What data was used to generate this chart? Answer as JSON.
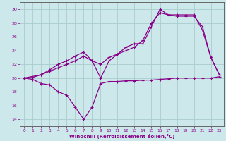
{
  "bg_color": "#cce8ea",
  "grid_color": "#aacccc",
  "line_color": "#880088",
  "xlabel": "Windchill (Refroidissement éolien,°C)",
  "xlim": [
    -0.5,
    23.5
  ],
  "ylim": [
    13.0,
    31.0
  ],
  "yticks": [
    14,
    16,
    18,
    20,
    22,
    24,
    26,
    28,
    30
  ],
  "xticks": [
    0,
    1,
    2,
    3,
    4,
    5,
    6,
    7,
    8,
    9,
    10,
    11,
    12,
    13,
    14,
    15,
    16,
    17,
    18,
    19,
    20,
    21,
    22,
    23
  ],
  "line1_x": [
    0,
    1,
    2,
    3,
    4,
    5,
    6,
    7,
    8,
    9,
    10,
    11,
    12,
    13,
    14,
    15,
    16,
    17,
    18,
    19,
    20,
    21,
    22,
    23
  ],
  "line1_y": [
    20,
    19.8,
    19.2,
    19.0,
    18.0,
    17.5,
    15.8,
    14.0,
    15.8,
    19.2,
    19.5,
    19.5,
    19.6,
    19.6,
    19.7,
    19.7,
    19.8,
    19.9,
    20.0,
    20.0,
    20.0,
    20.0,
    20.0,
    20.2
  ],
  "line2_x": [
    0,
    1,
    2,
    3,
    4,
    5,
    6,
    7,
    8,
    9,
    10,
    11,
    12,
    13,
    14,
    15,
    16,
    17,
    18,
    19,
    20,
    21,
    22,
    23
  ],
  "line2_y": [
    20,
    20.1,
    20.5,
    21.0,
    21.5,
    22.0,
    22.5,
    23.2,
    22.5,
    22.0,
    23.0,
    23.5,
    24.0,
    24.5,
    25.5,
    28.0,
    29.5,
    29.2,
    29.0,
    29.0,
    29.0,
    27.5,
    23.0,
    20.5
  ],
  "line3_x": [
    0,
    2,
    3,
    4,
    5,
    6,
    7,
    8,
    9,
    10,
    11,
    12,
    13,
    14,
    15,
    16,
    17,
    18,
    19,
    20,
    21,
    22,
    23
  ],
  "line3_y": [
    20,
    20.5,
    21.2,
    22.0,
    22.5,
    23.2,
    23.8,
    22.5,
    20.0,
    22.5,
    23.5,
    24.5,
    25.0,
    25.0,
    27.5,
    30.0,
    29.2,
    29.2,
    29.2,
    29.2,
    27.0,
    23.0,
    20.5
  ]
}
